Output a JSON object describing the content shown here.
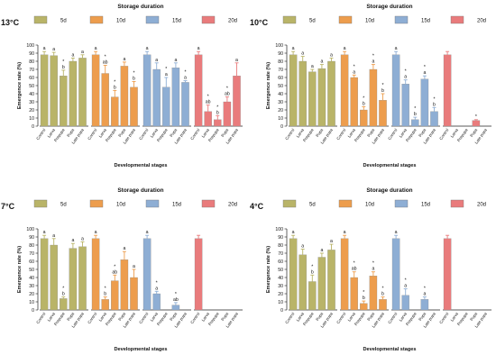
{
  "legend_title": "Storage duration",
  "legend": [
    {
      "label": "5d",
      "color": "#b9b468"
    },
    {
      "label": "10d",
      "color": "#ed9d4d"
    },
    {
      "label": "15d",
      "color": "#8eaed4"
    },
    {
      "label": "20d",
      "color": "#e97b7c"
    }
  ],
  "chart_data": [
    {
      "type": "bar",
      "title": "13°C",
      "xlabel": "Developmental stages",
      "ylabel": "Emergence rate (%)",
      "ylim": [
        0,
        100
      ],
      "yticks": [
        0,
        10,
        20,
        30,
        40,
        50,
        60,
        70,
        80,
        90,
        100
      ],
      "categories": [
        "Control",
        "Larva",
        "Prepupa",
        "Pupa",
        "Late pupa"
      ],
      "series": [
        {
          "name": "5d",
          "values": [
            88,
            87,
            62,
            80,
            84
          ],
          "errors": [
            4,
            4,
            7,
            4,
            4
          ],
          "labels": [
            "a",
            "a",
            "* b",
            "a",
            "a"
          ]
        },
        {
          "name": "10d",
          "values": [
            88,
            65,
            36,
            74,
            48
          ],
          "errors": [
            4,
            10,
            8,
            5,
            7
          ],
          "labels": [
            "a",
            "* ab",
            "* b",
            "a",
            "* b"
          ]
        },
        {
          "name": "15d",
          "values": [
            88,
            70,
            48,
            72,
            54
          ],
          "errors": [
            4,
            8,
            12,
            6,
            2
          ],
          "labels": [
            "a",
            "a",
            "* a",
            "a",
            "* a"
          ]
        },
        {
          "name": "20d",
          "values": [
            88,
            18,
            8,
            30,
            62
          ],
          "errors": [
            4,
            8,
            5,
            6,
            16
          ],
          "labels": [
            "a",
            "* ab",
            "* b",
            "* ab",
            "a"
          ]
        }
      ]
    },
    {
      "type": "bar",
      "title": "10°C",
      "xlabel": "Developmental stages",
      "ylabel": "Emergence rate (%)",
      "ylim": [
        0,
        100
      ],
      "yticks": [
        0,
        10,
        20,
        30,
        40,
        50,
        60,
        70,
        80,
        90,
        100
      ],
      "categories": [
        "Control",
        "Larva",
        "Prepupa",
        "Pupa",
        "Late pupa"
      ],
      "series": [
        {
          "name": "5d",
          "values": [
            88,
            80,
            67,
            71,
            80
          ],
          "errors": [
            4,
            6,
            3,
            5,
            4
          ],
          "labels": [
            "a",
            "a",
            "a",
            "a",
            "a"
          ]
        },
        {
          "name": "10d",
          "values": [
            88,
            60,
            20,
            70,
            32
          ],
          "errors": [
            4,
            3,
            4,
            6,
            8
          ],
          "labels": [
            "a",
            "* a",
            "* b",
            "* a",
            "* b"
          ]
        },
        {
          "name": "15d",
          "values": [
            88,
            52,
            8,
            58,
            18
          ],
          "errors": [
            4,
            5,
            3,
            4,
            5
          ],
          "labels": [
            "a",
            "* a",
            "* b",
            "* a",
            "* b"
          ]
        },
        {
          "name": "20d",
          "values": [
            88,
            0,
            0,
            7,
            0
          ],
          "errors": [
            4,
            0,
            0,
            1,
            0
          ],
          "labels": [
            "",
            "",
            "",
            "*",
            ""
          ]
        }
      ]
    },
    {
      "type": "bar",
      "title": "7°C",
      "xlabel": "Developmental stages",
      "ylabel": "Emergence rate (%)",
      "ylim": [
        0,
        100
      ],
      "yticks": [
        0,
        10,
        20,
        30,
        40,
        50,
        60,
        70,
        80,
        90,
        100
      ],
      "categories": [
        "Control",
        "Larva",
        "Prepupa",
        "Pupa",
        "Late pupa"
      ],
      "series": [
        {
          "name": "5d",
          "values": [
            88,
            80,
            14,
            76,
            78
          ],
          "errors": [
            4,
            8,
            2,
            6,
            6
          ],
          "labels": [
            "a",
            "a",
            "* b",
            "a",
            "a"
          ]
        },
        {
          "name": "10d",
          "values": [
            88,
            13,
            36,
            62,
            40
          ],
          "errors": [
            4,
            3,
            7,
            10,
            10
          ],
          "labels": [
            "a",
            "* b",
            "* ab",
            "a",
            "a"
          ]
        },
        {
          "name": "15d",
          "values": [
            88,
            20,
            0,
            6,
            0
          ],
          "errors": [
            4,
            3,
            0,
            3,
            0
          ],
          "labels": [
            "a",
            "* a",
            "",
            "* ab",
            ""
          ]
        },
        {
          "name": "20d",
          "values": [
            88,
            0,
            0,
            0,
            0
          ],
          "errors": [
            4,
            0,
            0,
            0,
            0
          ],
          "labels": [
            "",
            "",
            "",
            "",
            ""
          ]
        }
      ]
    },
    {
      "type": "bar",
      "title": "4°C",
      "xlabel": "Developmental stages",
      "ylabel": "Emergence rate (%)",
      "ylim": [
        0,
        100
      ],
      "yticks": [
        0,
        10,
        20,
        30,
        40,
        50,
        60,
        70,
        80,
        90,
        100
      ],
      "categories": [
        "Control",
        "Larva",
        "Prepupa",
        "Pupa",
        "Late pupa"
      ],
      "series": [
        {
          "name": "5d",
          "values": [
            88,
            68,
            35,
            65,
            74
          ],
          "errors": [
            4,
            7,
            8,
            5,
            7
          ],
          "labels": [
            "a",
            "a",
            "* b",
            "a",
            "a"
          ]
        },
        {
          "name": "10d",
          "values": [
            88,
            40,
            8,
            42,
            13
          ],
          "errors": [
            4,
            7,
            3,
            5,
            3
          ],
          "labels": [
            "a",
            "* ab",
            "* b",
            "* a",
            "* b"
          ]
        },
        {
          "name": "15d",
          "values": [
            88,
            18,
            0,
            13,
            0
          ],
          "errors": [
            4,
            8,
            0,
            3,
            0
          ],
          "labels": [
            "a",
            "* a",
            "",
            "* a",
            ""
          ]
        },
        {
          "name": "20d",
          "values": [
            88,
            0,
            0,
            0,
            0
          ],
          "errors": [
            4,
            0,
            0,
            0,
            0
          ],
          "labels": [
            "",
            "",
            "",
            "",
            ""
          ]
        }
      ]
    }
  ]
}
